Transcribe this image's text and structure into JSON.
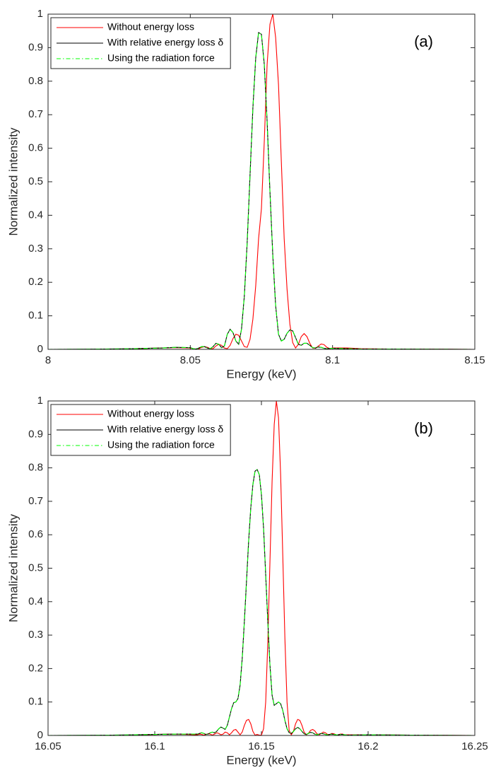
{
  "chart_data": [
    {
      "type": "line",
      "annotation": "(a)",
      "xlabel": "Energy (keV)",
      "ylabel": "Normalized intensity",
      "xlim": [
        8,
        8.15
      ],
      "xticks": [
        8,
        8.05,
        8.1,
        8.15
      ],
      "ylim": [
        0,
        1
      ],
      "yticks": [
        0,
        0.1,
        0.2,
        0.3,
        0.4,
        0.5,
        0.6,
        0.7,
        0.8,
        0.9,
        1
      ],
      "legend": "upper left",
      "x": [
        8,
        8.02,
        8.03,
        8.04,
        8.045,
        8.05,
        8.051,
        8.052,
        8.053,
        8.054,
        8.055,
        8.056,
        8.057,
        8.058,
        8.059,
        8.06,
        8.061,
        8.062,
        8.063,
        8.064,
        8.065,
        8.066,
        8.067,
        8.068,
        8.069,
        8.07,
        8.071,
        8.072,
        8.073,
        8.074,
        8.075,
        8.076,
        8.077,
        8.078,
        8.079,
        8.08,
        8.081,
        8.082,
        8.083,
        8.084,
        8.085,
        8.086,
        8.087,
        8.088,
        8.089,
        8.09,
        8.091,
        8.092,
        8.093,
        8.094,
        8.095,
        8.096,
        8.097,
        8.098,
        8.099,
        8.1,
        8.105,
        8.11,
        8.12,
        8.15
      ],
      "series": [
        {
          "name": "Without energy loss",
          "color": "#ff0000",
          "linestyle": "solid",
          "values": [
            0,
            0,
            0.002,
            0.004,
            0.005,
            0.004,
            0.002,
            0,
            0.002,
            0.006,
            0.008,
            0.006,
            0.002,
            0.002,
            0.01,
            0.015,
            0.012,
            0.004,
            0.002,
            0.012,
            0.032,
            0.045,
            0.042,
            0.025,
            0.008,
            0.006,
            0.03,
            0.09,
            0.19,
            0.33,
            0.42,
            0.62,
            0.85,
            0.97,
            1,
            0.93,
            0.79,
            0.56,
            0.33,
            0.18,
            0.075,
            0.02,
            0.004,
            0.015,
            0.038,
            0.047,
            0.038,
            0.018,
            0.004,
            0.003,
            0.01,
            0.016,
            0.014,
            0.006,
            0.002,
            0.004,
            0.004,
            0.002,
            0.001,
            0
          ]
        },
        {
          "name": "With relative energy loss δ",
          "color": "#000000",
          "linestyle": "solid",
          "values": [
            0,
            0.001,
            0.002,
            0.004,
            0.006,
            0.005,
            0.002,
            0.001,
            0.004,
            0.008,
            0.008,
            0.004,
            0.002,
            0.008,
            0.018,
            0.015,
            0.005,
            0.01,
            0.045,
            0.06,
            0.05,
            0.025,
            0.015,
            0.06,
            0.16,
            0.32,
            0.52,
            0.72,
            0.87,
            0.945,
            0.94,
            0.85,
            0.68,
            0.47,
            0.28,
            0.13,
            0.045,
            0.025,
            0.03,
            0.048,
            0.058,
            0.055,
            0.035,
            0.015,
            0.012,
            0.018,
            0.018,
            0.012,
            0.005,
            0.004,
            0.007,
            0.006,
            0.003,
            0.002,
            0.003,
            0.003,
            0.002,
            0.001,
            0.001,
            0
          ]
        },
        {
          "name": "Using the radiation force",
          "color": "#00ff00",
          "linestyle": "dashdot",
          "values": [
            0,
            0.001,
            0.002,
            0.004,
            0.006,
            0.005,
            0.002,
            0.001,
            0.004,
            0.008,
            0.008,
            0.004,
            0.002,
            0.008,
            0.018,
            0.015,
            0.005,
            0.01,
            0.045,
            0.06,
            0.05,
            0.025,
            0.015,
            0.06,
            0.16,
            0.32,
            0.52,
            0.72,
            0.87,
            0.945,
            0.94,
            0.85,
            0.68,
            0.47,
            0.28,
            0.13,
            0.045,
            0.025,
            0.03,
            0.048,
            0.058,
            0.055,
            0.035,
            0.015,
            0.012,
            0.018,
            0.018,
            0.012,
            0.005,
            0.004,
            0.007,
            0.006,
            0.003,
            0.002,
            0.003,
            0.003,
            0.002,
            0.001,
            0.001,
            0
          ]
        }
      ]
    },
    {
      "type": "line",
      "annotation": "(b)",
      "xlabel": "Energy (keV)",
      "ylabel": "Normalized intensity",
      "xlim": [
        16.05,
        16.25
      ],
      "xticks": [
        16.05,
        16.1,
        16.15,
        16.2,
        16.25
      ],
      "ylim": [
        0,
        1
      ],
      "yticks": [
        0,
        0.1,
        0.2,
        0.3,
        0.4,
        0.5,
        0.6,
        0.7,
        0.8,
        0.9,
        1
      ],
      "legend": "upper left",
      "x": [
        16.05,
        16.08,
        16.1,
        16.11,
        16.12,
        16.121,
        16.122,
        16.123,
        16.124,
        16.125,
        16.126,
        16.127,
        16.128,
        16.129,
        16.13,
        16.131,
        16.132,
        16.133,
        16.134,
        16.135,
        16.136,
        16.137,
        16.138,
        16.139,
        16.14,
        16.141,
        16.142,
        16.143,
        16.144,
        16.145,
        16.146,
        16.147,
        16.148,
        16.149,
        16.15,
        16.151,
        16.152,
        16.153,
        16.154,
        16.155,
        16.156,
        16.157,
        16.158,
        16.159,
        16.16,
        16.161,
        16.162,
        16.163,
        16.164,
        16.165,
        16.166,
        16.167,
        16.168,
        16.169,
        16.17,
        16.171,
        16.172,
        16.173,
        16.174,
        16.175,
        16.176,
        16.177,
        16.178,
        16.179,
        16.18,
        16.181,
        16.182,
        16.183,
        16.184,
        16.185,
        16.186,
        16.187,
        16.188,
        16.189,
        16.19,
        16.2,
        16.22,
        16.25
      ],
      "series": [
        {
          "name": "Without energy loss",
          "color": "#ff0000",
          "linestyle": "solid",
          "values": [
            0,
            0,
            0.003,
            0.004,
            0.002,
            0.004,
            0.003,
            0.001,
            0.003,
            0.005,
            0.004,
            0.001,
            0.004,
            0.008,
            0.006,
            0.002,
            0.004,
            0.01,
            0.008,
            0.002,
            0.008,
            0.016,
            0.018,
            0.01,
            0.002,
            0.01,
            0.03,
            0.045,
            0.048,
            0.035,
            0.012,
            0.001,
            0.003,
            0.001,
            0.001,
            0.02,
            0.1,
            0.28,
            0.52,
            0.76,
            0.93,
            1,
            0.95,
            0.78,
            0.54,
            0.29,
            0.1,
            0.015,
            0.002,
            0.012,
            0.035,
            0.048,
            0.045,
            0.03,
            0.01,
            0.002,
            0.006,
            0.015,
            0.018,
            0.014,
            0.005,
            0.002,
            0.006,
            0.01,
            0.008,
            0.003,
            0.003,
            0.006,
            0.005,
            0.002,
            0.002,
            0.004,
            0.004,
            0.002,
            0.002,
            0.002,
            0.001,
            0
          ]
        },
        {
          "name": "With relative energy loss δ",
          "color": "#000000",
          "linestyle": "solid",
          "values": [
            0,
            0.001,
            0.003,
            0.004,
            0.004,
            0.006,
            0.008,
            0.006,
            0.003,
            0.004,
            0.008,
            0.01,
            0.008,
            0.012,
            0.02,
            0.025,
            0.022,
            0.018,
            0.03,
            0.055,
            0.08,
            0.098,
            0.1,
            0.11,
            0.15,
            0.23,
            0.34,
            0.46,
            0.58,
            0.68,
            0.75,
            0.79,
            0.795,
            0.78,
            0.72,
            0.62,
            0.48,
            0.34,
            0.21,
            0.12,
            0.09,
            0.095,
            0.1,
            0.095,
            0.075,
            0.045,
            0.02,
            0.008,
            0.006,
            0.012,
            0.02,
            0.024,
            0.02,
            0.012,
            0.005,
            0.003,
            0.006,
            0.009,
            0.008,
            0.004,
            0.002,
            0.004,
            0.006,
            0.005,
            0.003,
            0.002,
            0.003,
            0.004,
            0.003,
            0.002,
            0.002,
            0.003,
            0.003,
            0.002,
            0.001,
            0.002,
            0.001,
            0
          ]
        },
        {
          "name": "Using the radiation force",
          "color": "#00ff00",
          "linestyle": "dashdot",
          "values": [
            0,
            0.001,
            0.003,
            0.004,
            0.004,
            0.006,
            0.008,
            0.006,
            0.003,
            0.004,
            0.008,
            0.01,
            0.008,
            0.012,
            0.02,
            0.025,
            0.022,
            0.018,
            0.03,
            0.055,
            0.08,
            0.098,
            0.1,
            0.11,
            0.15,
            0.23,
            0.34,
            0.46,
            0.58,
            0.68,
            0.75,
            0.79,
            0.795,
            0.78,
            0.72,
            0.62,
            0.48,
            0.34,
            0.21,
            0.12,
            0.09,
            0.095,
            0.1,
            0.095,
            0.075,
            0.045,
            0.02,
            0.008,
            0.006,
            0.012,
            0.02,
            0.024,
            0.02,
            0.012,
            0.005,
            0.003,
            0.006,
            0.009,
            0.008,
            0.004,
            0.002,
            0.004,
            0.006,
            0.005,
            0.003,
            0.002,
            0.003,
            0.004,
            0.003,
            0.002,
            0.002,
            0.003,
            0.003,
            0.002,
            0.001,
            0.002,
            0.001,
            0
          ]
        }
      ]
    }
  ]
}
